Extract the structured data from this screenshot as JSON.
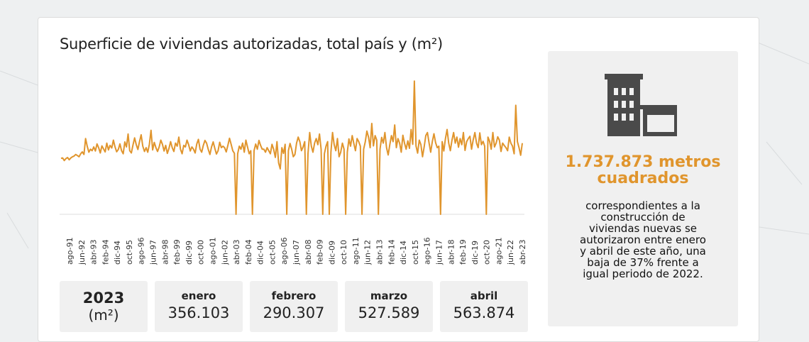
{
  "title": "Superficie de viviendas autorizadas, total país y (m²)",
  "chart_data": {
    "type": "line",
    "title": "Superficie de viviendas autorizadas, total país y (m²)",
    "x_tick_labels": [
      "ago-91",
      "jun-92",
      "abr-93",
      "feb-94",
      "dic-94",
      "oct-95",
      "ago-96",
      "jun-97",
      "abr-98",
      "feb-99",
      "dic-99",
      "oct-00",
      "ago-01",
      "jun-02",
      "abr-03",
      "feb-04",
      "dic-04",
      "oct-05",
      "ago-06",
      "jun-07",
      "abr-08",
      "feb-09",
      "dic-09",
      "oct-10",
      "ago-11",
      "jun-12",
      "abr-13",
      "feb-14",
      "dic-14",
      "oct-15",
      "ago-16",
      "jun-17",
      "abr-18",
      "feb-19",
      "dic-19",
      "oct-20",
      "ago-21",
      "jun-22",
      "abr-23"
    ],
    "x_range": [
      "ago-91",
      "abr-23"
    ],
    "series_color": "#e0952d",
    "values": [
      370,
      372,
      355,
      368,
      375,
      360,
      372,
      380,
      385,
      395,
      388,
      380,
      400,
      412,
      395,
      500,
      450,
      410,
      430,
      420,
      445,
      418,
      465,
      440,
      405,
      452,
      432,
      412,
      470,
      425,
      455,
      438,
      490,
      445,
      413,
      428,
      465,
      420,
      400,
      478,
      445,
      530,
      420,
      405,
      458,
      505,
      460,
      428,
      480,
      525,
      450,
      415,
      440,
      410,
      462,
      555,
      425,
      475,
      440,
      415,
      445,
      490,
      462,
      418,
      455,
      402,
      435,
      480,
      440,
      415,
      470,
      450,
      510,
      430,
      400,
      455,
      445,
      490,
      460,
      418,
      445,
      430,
      405,
      465,
      495,
      430,
      410,
      455,
      488,
      470,
      430,
      395,
      445,
      478,
      436,
      398,
      420,
      476,
      440,
      450,
      440,
      412,
      455,
      502,
      462,
      420,
      403,
      0,
      400,
      450,
      430,
      470,
      410,
      490,
      445,
      400,
      420,
      0,
      420,
      464,
      430,
      488,
      455,
      430,
      430,
      410,
      440,
      420,
      400,
      462,
      430,
      376,
      480,
      340,
      300,
      440,
      402,
      462,
      0,
      420,
      468,
      430,
      380,
      395,
      470,
      510,
      480,
      420,
      445,
      480,
      0,
      400,
      540,
      450,
      410,
      470,
      500,
      460,
      530,
      430,
      0,
      400,
      450,
      480,
      0,
      410,
      540,
      460,
      420,
      500,
      380,
      410,
      470,
      430,
      0,
      410,
      498,
      450,
      520,
      468,
      420,
      500,
      480,
      450,
      0,
      430,
      478,
      550,
      510,
      440,
      600,
      452,
      520,
      490,
      0,
      430,
      508,
      470,
      540,
      440,
      392,
      460,
      520,
      480,
      590,
      440,
      500,
      470,
      410,
      522,
      470,
      430,
      485,
      436,
      560,
      462,
      880,
      452,
      404,
      490,
      460,
      380,
      445,
      520,
      540,
      472,
      410,
      480,
      532,
      474,
      440,
      450,
      0,
      480,
      418,
      500,
      560,
      470,
      420,
      490,
      540,
      470,
      510,
      443,
      500,
      460,
      540,
      422,
      480,
      500,
      515,
      430,
      494,
      540,
      470,
      440,
      538,
      460,
      482,
      450,
      0,
      510,
      483,
      430,
      540,
      445,
      470,
      512,
      490,
      415,
      470,
      454,
      440,
      420,
      510,
      470,
      450,
      400,
      720,
      480,
      440,
      390,
      470
    ],
    "ylim": [
      0,
      900
    ],
    "baseline": 0,
    "grid": false,
    "legend": "none",
    "xlabel": "",
    "ylabel": ""
  },
  "boxes": [
    {
      "label": "2023",
      "value": "(m²)"
    },
    {
      "label": "enero",
      "value": "356.103"
    },
    {
      "label": "febrero",
      "value": "290.307"
    },
    {
      "label": "marzo",
      "value": "527.589"
    },
    {
      "label": "abril",
      "value": "563.874"
    }
  ],
  "side": {
    "icon": "building-icon",
    "highlight_line1": "1.737.873 metros",
    "highlight_line2": "cuadrados",
    "description_lines": [
      "correspondientes a la",
      "construcción de",
      "viviendas nuevas se",
      "autorizaron entre enero",
      "y abril de este año, una",
      "baja de 37% frente a",
      "igual periodo de 2022."
    ],
    "accent_color": "#e0952d",
    "icon_color": "#4a4a4a"
  }
}
